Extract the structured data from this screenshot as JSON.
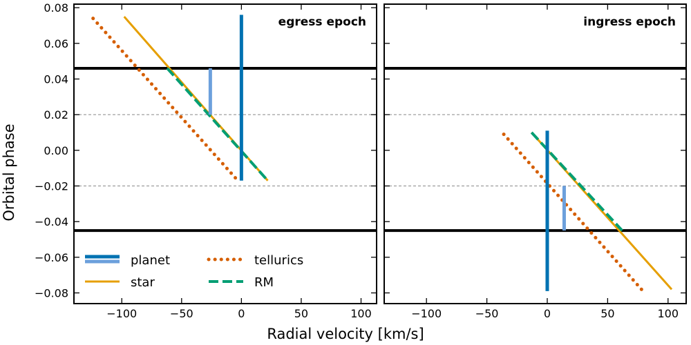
{
  "chart_data": {
    "type": "line",
    "xlabel": "Radial velocity [km/s]",
    "ylabel": "Orbital phase",
    "legend": {
      "placement": "bottom-left of left panel",
      "entries": [
        {
          "label": "planet",
          "colors": [
            "#0072B2",
            "#6CA0DC"
          ],
          "style": "solid"
        },
        {
          "label": "star",
          "color": "#E69F00",
          "style": "solid"
        },
        {
          "label": "tellurics",
          "color": "#D55E00",
          "style": "dotted"
        },
        {
          "label": "RM",
          "color": "#009E73",
          "style": "dashed"
        }
      ]
    },
    "panels": [
      {
        "label": "egress epoch",
        "xlim": [
          -140,
          113
        ],
        "ylim": [
          -0.086,
          0.082
        ],
        "xticks": [
          -100,
          -50,
          0,
          50,
          100
        ],
        "yticks": [
          -0.08,
          -0.06,
          -0.04,
          -0.02,
          0.0,
          0.02,
          0.04,
          0.06,
          0.08
        ],
        "ytick_labels": [
          "−0.08",
          "−0.06",
          "−0.04",
          "−0.02",
          "0.00",
          "0.02",
          "0.04",
          "0.06",
          "0.08"
        ],
        "xtick_labels": [
          "−100",
          "−50",
          "0",
          "50",
          "100"
        ],
        "transit_limits": [
          -0.045,
          0.046
        ],
        "dashed_lines": [
          -0.02,
          0.02
        ],
        "series": [
          {
            "name": "star",
            "color": "#E69F00",
            "style": "solid",
            "x": [
              -98,
              22
            ],
            "y": [
              0.075,
              -0.017
            ]
          },
          {
            "name": "tellurics",
            "color": "#D55E00",
            "style": "dotted",
            "x": [
              -124,
              -3
            ],
            "y": [
              0.074,
              -0.017
            ]
          },
          {
            "name": "RM",
            "color": "#009E73",
            "style": "dashed",
            "x": [
              -62,
              22
            ],
            "y": [
              0.046,
              -0.017
            ]
          },
          {
            "name": "planet",
            "color": "#0072B2",
            "style": "solid",
            "x": [
              0,
              0
            ],
            "y": [
              0.076,
              -0.017
            ]
          },
          {
            "name": "planet",
            "color": "#6CA0DC",
            "style": "solid",
            "x": [
              -26,
              -26
            ],
            "y": [
              0.046,
              0.02
            ]
          }
        ]
      },
      {
        "label": "ingress epoch",
        "xlim": [
          -135,
          115
        ],
        "ylim": [
          -0.086,
          0.082
        ],
        "xticks": [
          -100,
          -50,
          0,
          50,
          100
        ],
        "xtick_labels": [
          "−100",
          "−50",
          "0",
          "50",
          "100"
        ],
        "transit_limits": [
          -0.045,
          0.046
        ],
        "dashed_lines": [
          -0.02,
          0.02
        ],
        "series": [
          {
            "name": "star",
            "color": "#E69F00",
            "style": "solid",
            "x": [
              -13,
              103
            ],
            "y": [
              0.01,
              -0.078
            ]
          },
          {
            "name": "tellurics",
            "color": "#D55E00",
            "style": "dotted",
            "x": [
              -36,
              78
            ],
            "y": [
              0.009,
              -0.078
            ]
          },
          {
            "name": "RM",
            "color": "#009E73",
            "style": "dashed",
            "x": [
              -13,
              62
            ],
            "y": [
              0.01,
              -0.045
            ]
          },
          {
            "name": "planet",
            "color": "#0072B2",
            "style": "solid",
            "x": [
              0,
              0
            ],
            "y": [
              0.011,
              -0.079
            ]
          },
          {
            "name": "planet",
            "color": "#6CA0DC",
            "style": "solid",
            "x": [
              14,
              14
            ],
            "y": [
              -0.02,
              -0.045
            ]
          }
        ]
      }
    ]
  }
}
